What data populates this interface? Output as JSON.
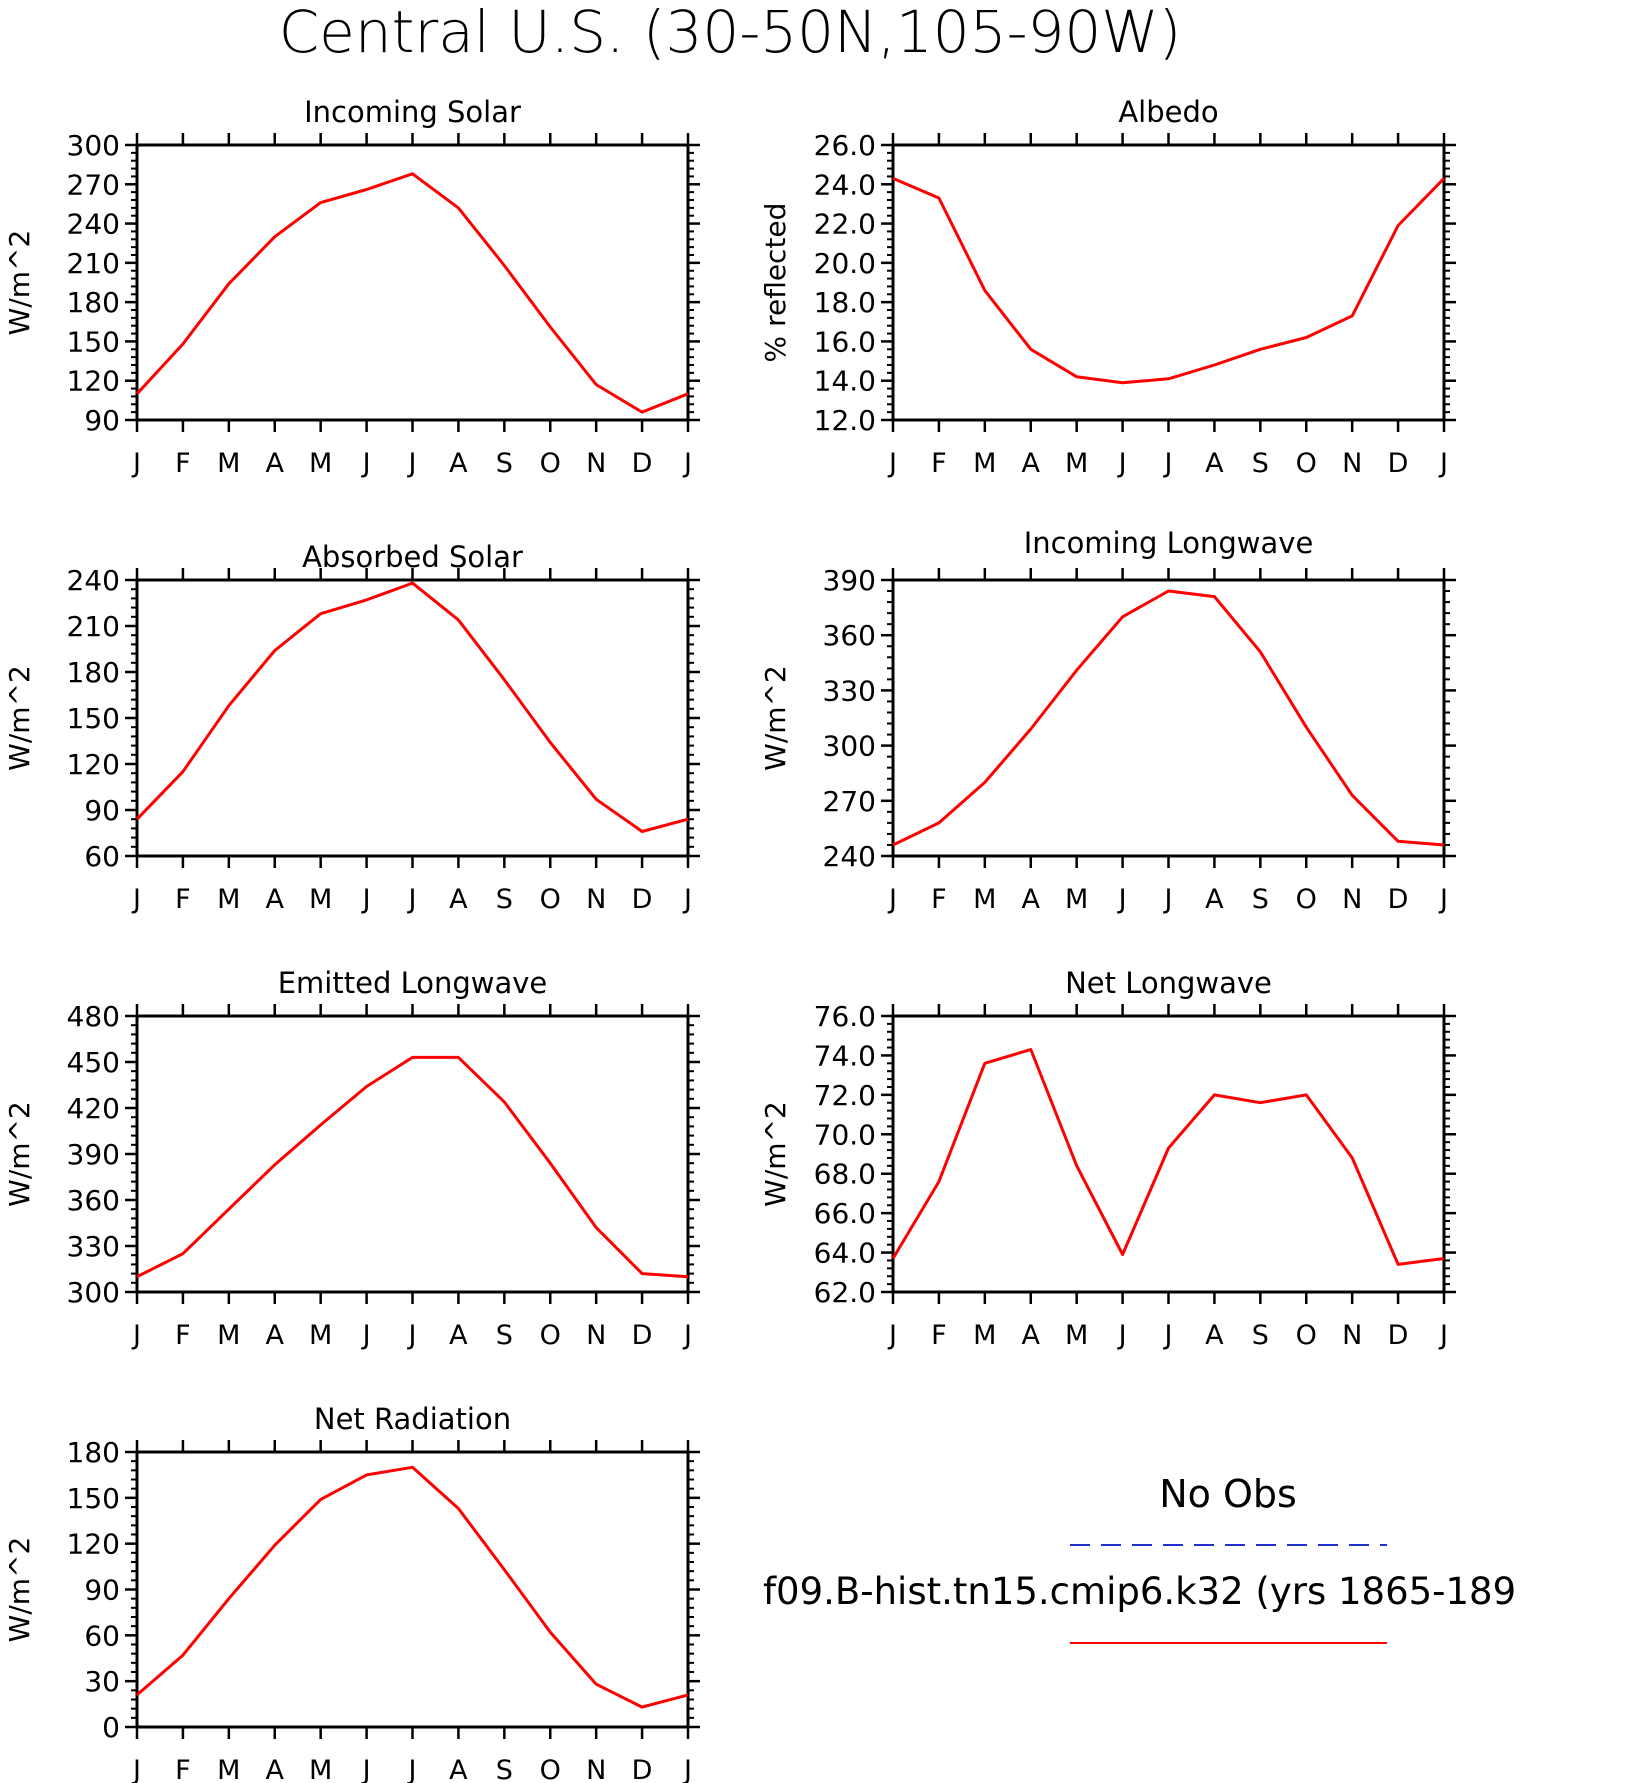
{
  "figure": {
    "title": "Central U.S. (30-50N,105-90W)"
  },
  "legend": {
    "obs_label": "No Obs",
    "obs_color": "#2030d0",
    "model_label": "f09.B-hist.tn15.cmip6.k32 (yrs 1865-189",
    "model_color": "#ff0000"
  },
  "months": [
    "J",
    "F",
    "M",
    "A",
    "M",
    "J",
    "J",
    "A",
    "S",
    "O",
    "N",
    "D",
    "J"
  ],
  "chart_data": [
    {
      "type": "line",
      "title": "Incoming Solar",
      "ylabel": "W/m^2",
      "categories": [
        "J",
        "F",
        "M",
        "A",
        "M",
        "J",
        "J",
        "A",
        "S",
        "O",
        "N",
        "D",
        "J"
      ],
      "ylim": [
        90,
        300
      ],
      "yticks": [
        "300",
        "270",
        "240",
        "210",
        "180",
        "150",
        "120",
        "90"
      ],
      "series": [
        {
          "values": [
            110,
            148,
            194,
            230,
            256,
            266,
            278,
            252,
            208,
            161,
            117,
            96,
            110
          ],
          "color": "#ff0000"
        }
      ]
    },
    {
      "type": "line",
      "title": "Albedo",
      "ylabel": "% reflected",
      "categories": [
        "J",
        "F",
        "M",
        "A",
        "M",
        "J",
        "J",
        "A",
        "S",
        "O",
        "N",
        "D",
        "J"
      ],
      "ylim": [
        12.0,
        26.0
      ],
      "yticks": [
        "26.0",
        "24.0",
        "22.0",
        "20.0",
        "18.0",
        "16.0",
        "14.0",
        "12.0"
      ],
      "series": [
        {
          "values": [
            24.3,
            23.3,
            18.6,
            15.6,
            14.2,
            13.9,
            14.1,
            14.8,
            15.6,
            16.2,
            17.3,
            21.9,
            24.3
          ],
          "color": "#ff0000"
        }
      ]
    },
    {
      "type": "line",
      "title": "Absorbed Solar",
      "ylabel": "W/m^2",
      "categories": [
        "J",
        "F",
        "M",
        "A",
        "M",
        "J",
        "J",
        "A",
        "S",
        "O",
        "N",
        "D",
        "J"
      ],
      "ylim": [
        60,
        240
      ],
      "yticks": [
        "240",
        "210",
        "180",
        "150",
        "120",
        "90",
        "60"
      ],
      "series": [
        {
          "values": [
            84,
            115,
            158,
            194,
            218,
            227,
            238,
            214,
            175,
            134,
            97,
            76,
            84
          ],
          "color": "#ff0000"
        }
      ]
    },
    {
      "type": "line",
      "title": "Incoming Longwave",
      "ylabel": "W/m^2",
      "categories": [
        "J",
        "F",
        "M",
        "A",
        "M",
        "J",
        "J",
        "A",
        "S",
        "O",
        "N",
        "D",
        "J"
      ],
      "ylim": [
        240,
        390
      ],
      "yticks": [
        "390",
        "360",
        "330",
        "300",
        "270",
        "240"
      ],
      "series": [
        {
          "values": [
            246,
            258,
            280,
            309,
            341,
            370,
            384,
            381,
            351,
            310,
            273,
            248,
            246
          ],
          "color": "#ff0000"
        }
      ]
    },
    {
      "type": "line",
      "title": "Emitted Longwave",
      "ylabel": "W/m^2",
      "categories": [
        "J",
        "F",
        "M",
        "A",
        "M",
        "J",
        "J",
        "A",
        "S",
        "O",
        "N",
        "D",
        "J"
      ],
      "ylim": [
        300,
        480
      ],
      "yticks": [
        "480",
        "450",
        "420",
        "390",
        "360",
        "330",
        "300"
      ],
      "series": [
        {
          "values": [
            310,
            325,
            354,
            383,
            409,
            434,
            453,
            453,
            424,
            384,
            342,
            312,
            310
          ],
          "color": "#ff0000"
        }
      ]
    },
    {
      "type": "line",
      "title": "Net Longwave",
      "ylabel": "W/m^2",
      "categories": [
        "J",
        "F",
        "M",
        "A",
        "M",
        "J",
        "J",
        "A",
        "S",
        "O",
        "N",
        "D",
        "J"
      ],
      "ylim": [
        62.0,
        76.0
      ],
      "yticks": [
        "76.0",
        "74.0",
        "72.0",
        "70.0",
        "68.0",
        "66.0",
        "64.0",
        "62.0"
      ],
      "series": [
        {
          "values": [
            63.7,
            67.6,
            73.6,
            74.3,
            68.4,
            63.9,
            69.3,
            72.0,
            71.6,
            72.0,
            68.8,
            63.4,
            63.7
          ],
          "color": "#ff0000"
        }
      ]
    },
    {
      "type": "line",
      "title": "Net Radiation",
      "ylabel": "W/m^2",
      "categories": [
        "J",
        "F",
        "M",
        "A",
        "M",
        "J",
        "J",
        "A",
        "S",
        "O",
        "N",
        "D",
        "J"
      ],
      "ylim": [
        0,
        180
      ],
      "yticks": [
        "180",
        "150",
        "120",
        "90",
        "60",
        "30",
        "0"
      ],
      "series": [
        {
          "values": [
            21,
            47,
            84,
            119,
            149,
            165,
            170,
            143,
            103,
            62,
            28,
            13,
            21
          ],
          "color": "#ff0000"
        }
      ]
    }
  ]
}
